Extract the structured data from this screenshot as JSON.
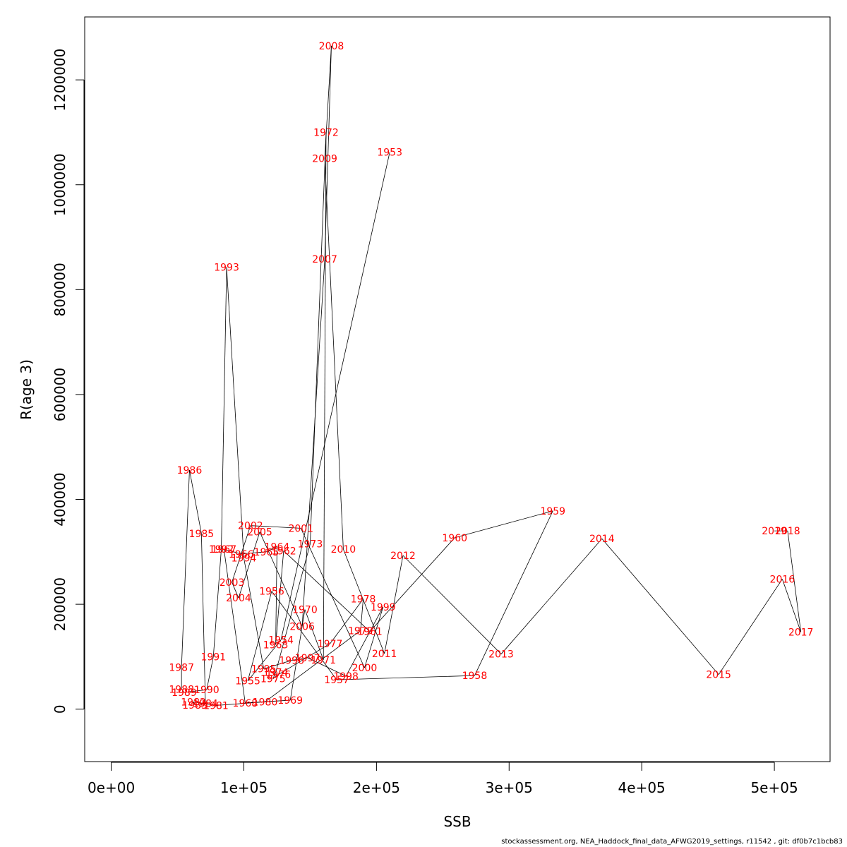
{
  "chart_data": {
    "type": "line",
    "xlabel": "SSB",
    "ylabel": "R(age 3)",
    "xlim": [
      -20000,
      542000
    ],
    "ylim": [
      -100000,
      1320000
    ],
    "x_ticks": [
      {
        "value": 0,
        "label": "0e+00"
      },
      {
        "value": 100000,
        "label": "1e+05"
      },
      {
        "value": 200000,
        "label": "2e+05"
      },
      {
        "value": 300000,
        "label": "3e+05"
      },
      {
        "value": 400000,
        "label": "4e+05"
      },
      {
        "value": 500000,
        "label": "5e+05"
      }
    ],
    "y_ticks": [
      {
        "value": 0,
        "label": "0"
      },
      {
        "value": 200000,
        "label": "200000"
      },
      {
        "value": 400000,
        "label": "400000"
      },
      {
        "value": 600000,
        "label": "600000"
      },
      {
        "value": 800000,
        "label": "800000"
      },
      {
        "value": 1000000,
        "label": "1000000"
      },
      {
        "value": 1200000,
        "label": "1200000"
      }
    ],
    "point_label_color": "#ff0000",
    "line_color": "#000000",
    "points": [
      {
        "year": "1953",
        "x": 210000,
        "y": 1062000
      },
      {
        "year": "1954",
        "x": 128000,
        "y": 132000
      },
      {
        "year": "1955",
        "x": 103000,
        "y": 54000
      },
      {
        "year": "1956",
        "x": 121000,
        "y": 225000
      },
      {
        "year": "1957",
        "x": 170000,
        "y": 56000
      },
      {
        "year": "1958",
        "x": 274000,
        "y": 64000
      },
      {
        "year": "1959",
        "x": 333000,
        "y": 378000
      },
      {
        "year": "1960",
        "x": 259000,
        "y": 327000
      },
      {
        "year": "1961",
        "x": 195000,
        "y": 148000
      },
      {
        "year": "1962",
        "x": 130000,
        "y": 302000
      },
      {
        "year": "1963",
        "x": 124000,
        "y": 123000
      },
      {
        "year": "1964",
        "x": 125000,
        "y": 310000
      },
      {
        "year": "1965",
        "x": 117000,
        "y": 300000
      },
      {
        "year": "1966",
        "x": 98000,
        "y": 296000
      },
      {
        "year": "1967",
        "x": 85000,
        "y": 305000
      },
      {
        "year": "1968",
        "x": 101000,
        "y": 12000
      },
      {
        "year": "1969",
        "x": 135000,
        "y": 17000
      },
      {
        "year": "1970",
        "x": 146000,
        "y": 190000
      },
      {
        "year": "1971",
        "x": 160000,
        "y": 94000
      },
      {
        "year": "1972",
        "x": 162000,
        "y": 1100000
      },
      {
        "year": "1973",
        "x": 150000,
        "y": 315000
      },
      {
        "year": "1974",
        "x": 124000,
        "y": 70000
      },
      {
        "year": "1975",
        "x": 122000,
        "y": 58000
      },
      {
        "year": "1976",
        "x": 126000,
        "y": 66000
      },
      {
        "year": "1977",
        "x": 165000,
        "y": 125000
      },
      {
        "year": "1978",
        "x": 190000,
        "y": 210000
      },
      {
        "year": "1979",
        "x": 188000,
        "y": 150000
      },
      {
        "year": "1980",
        "x": 116000,
        "y": 14000
      },
      {
        "year": "1981",
        "x": 79000,
        "y": 7000
      },
      {
        "year": "1982",
        "x": 62000,
        "y": 14000
      },
      {
        "year": "1983",
        "x": 63000,
        "y": 8000
      },
      {
        "year": "1984",
        "x": 71000,
        "y": 11000
      },
      {
        "year": "1985",
        "x": 68000,
        "y": 335000
      },
      {
        "year": "1986",
        "x": 59000,
        "y": 456000
      },
      {
        "year": "1987",
        "x": 53000,
        "y": 80000
      },
      {
        "year": "1988",
        "x": 53000,
        "y": 38000
      },
      {
        "year": "1989",
        "x": 55000,
        "y": 32000
      },
      {
        "year": "1990",
        "x": 72000,
        "y": 37000
      },
      {
        "year": "1991",
        "x": 77000,
        "y": 100000
      },
      {
        "year": "1992",
        "x": 83000,
        "y": 305000
      },
      {
        "year": "1993",
        "x": 87000,
        "y": 843000
      },
      {
        "year": "1994",
        "x": 100000,
        "y": 288000
      },
      {
        "year": "1995",
        "x": 115000,
        "y": 77000
      },
      {
        "year": "1996",
        "x": 136000,
        "y": 93000
      },
      {
        "year": "1997",
        "x": 148000,
        "y": 98000
      },
      {
        "year": "1998",
        "x": 177000,
        "y": 63000
      },
      {
        "year": "1999",
        "x": 205000,
        "y": 195000
      },
      {
        "year": "2000",
        "x": 191000,
        "y": 79000
      },
      {
        "year": "2001",
        "x": 143000,
        "y": 345000
      },
      {
        "year": "2002",
        "x": 105000,
        "y": 350000
      },
      {
        "year": "2003",
        "x": 91000,
        "y": 242000
      },
      {
        "year": "2004",
        "x": 96000,
        "y": 212000
      },
      {
        "year": "2005",
        "x": 112000,
        "y": 338000
      },
      {
        "year": "2006",
        "x": 144000,
        "y": 158000
      },
      {
        "year": "2007",
        "x": 161000,
        "y": 858000
      },
      {
        "year": "2008",
        "x": 166000,
        "y": 1265000
      },
      {
        "year": "2009",
        "x": 161000,
        "y": 1050000
      },
      {
        "year": "2010",
        "x": 175000,
        "y": 305000
      },
      {
        "year": "2011",
        "x": 206000,
        "y": 106000
      },
      {
        "year": "2012",
        "x": 220000,
        "y": 293000
      },
      {
        "year": "2013",
        "x": 294000,
        "y": 105000
      },
      {
        "year": "2014",
        "x": 370000,
        "y": 325000
      },
      {
        "year": "2015",
        "x": 458000,
        "y": 66000
      },
      {
        "year": "2016",
        "x": 506000,
        "y": 248000
      },
      {
        "year": "2017",
        "x": 520000,
        "y": 147000
      },
      {
        "year": "2018",
        "x": 510000,
        "y": 340000
      },
      {
        "year": "2019",
        "x": 500000,
        "y": 340000
      }
    ]
  },
  "footer": {
    "note": "stockassessment.org, NEA_Haddock_final_data_AFWG2019_settings, r11542 , git: df0b7c1bcb83"
  }
}
